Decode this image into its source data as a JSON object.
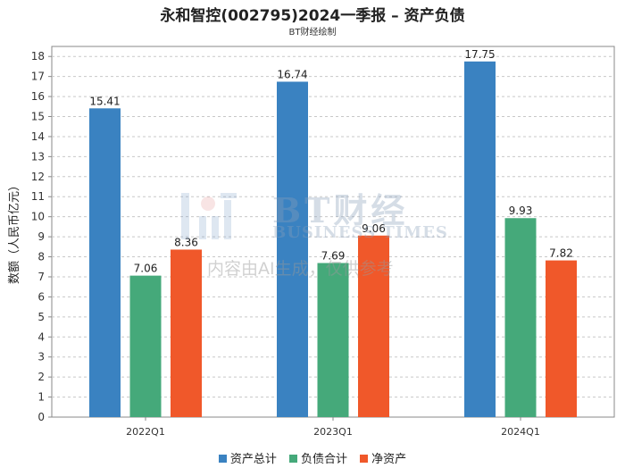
{
  "title": "永和智控(002795)2024一季报 – 资产负债",
  "subtitle": "BT财经绘制",
  "watermark": {
    "brand": "BT财经",
    "sub": "BUSINESS TIMES",
    "note": "内容由AI生成，仅供参考"
  },
  "colors": {
    "series_0": "#3a82c1",
    "series_1": "#45a97a",
    "series_2": "#f0582a",
    "grid": "#c8c8c8",
    "axis": "#888888"
  },
  "chart_data": {
    "type": "bar",
    "title": "永和智控(002795)2024一季报 – 资产负债",
    "subtitle": "BT财经绘制",
    "xlabel": "",
    "ylabel": "数额（人民币亿元）",
    "categories": [
      "2022Q1",
      "2023Q1",
      "2024Q1"
    ],
    "series": [
      {
        "name": "资产总计",
        "values": [
          15.41,
          16.74,
          17.75
        ]
      },
      {
        "name": "负债合计",
        "values": [
          7.06,
          7.69,
          9.93
        ]
      },
      {
        "name": "净资产",
        "values": [
          8.36,
          9.06,
          7.82
        ]
      }
    ],
    "ylim": [
      0,
      18.5
    ],
    "yticks": [
      0,
      1,
      2,
      3,
      4,
      5,
      6,
      7,
      8,
      9,
      10,
      11,
      12,
      13,
      14,
      15,
      16,
      17,
      18
    ],
    "grid": true,
    "legend_position": "bottom"
  }
}
